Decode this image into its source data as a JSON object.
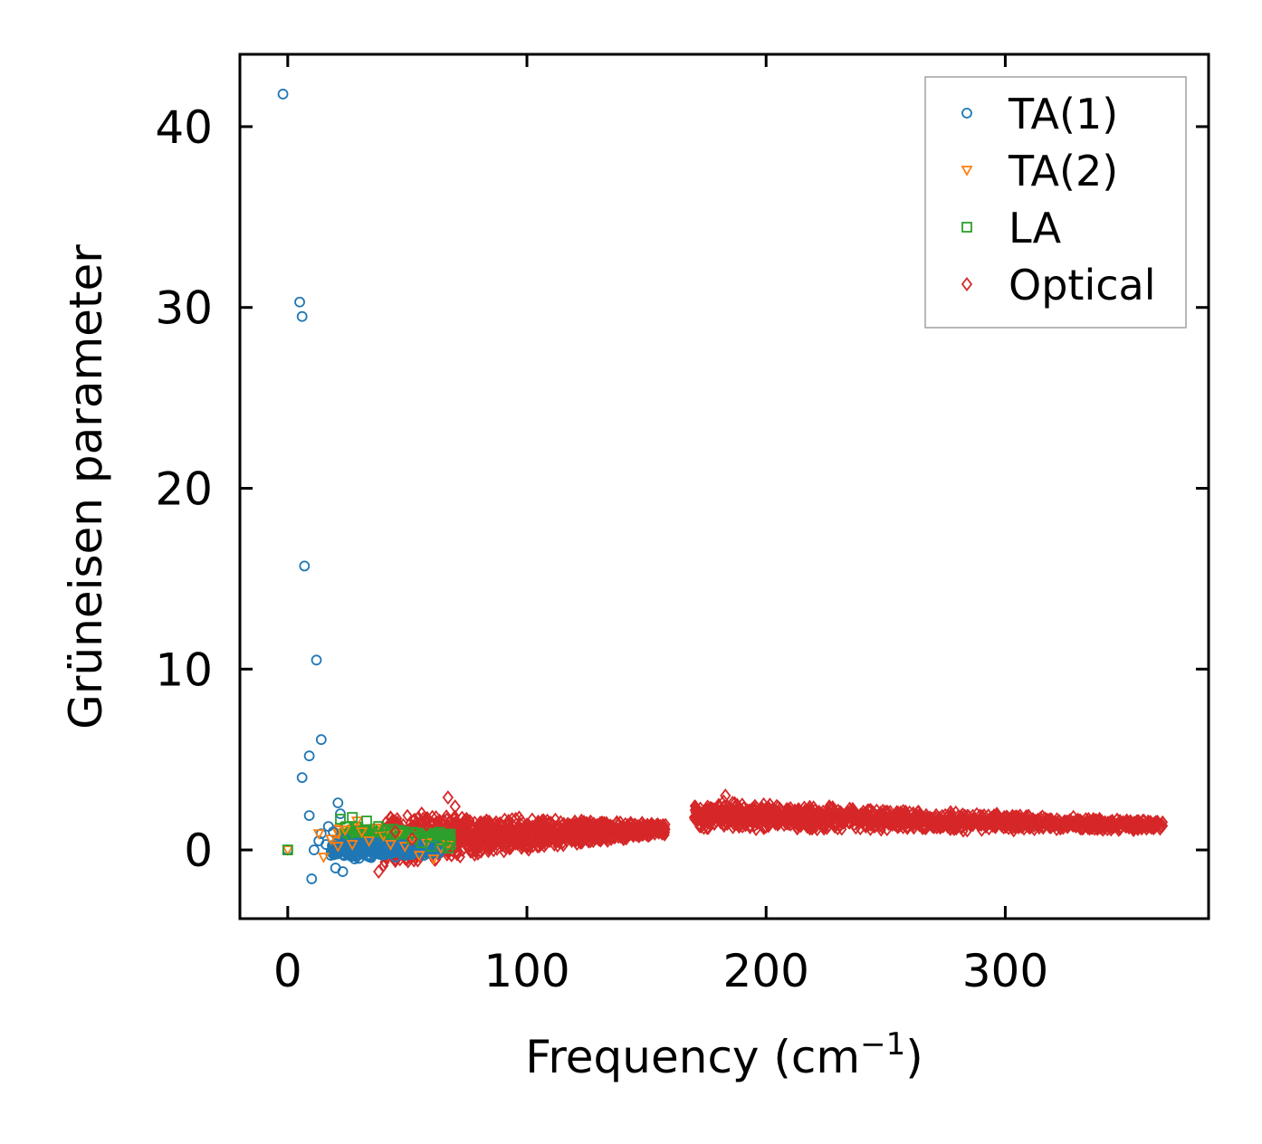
{
  "chart_data": {
    "type": "scatter",
    "title": "",
    "xlabel": "Frequency (cm",
    "xlabel_sup": "−1",
    "xlabel_close": ")",
    "ylabel": "Grüneisen parameter",
    "xlim": [
      -20,
      385
    ],
    "ylim": [
      -3.8,
      44
    ],
    "xticks": [
      0,
      100,
      200,
      300
    ],
    "yticks": [
      0,
      10,
      20,
      30,
      40
    ],
    "legend_position": "top-right",
    "series": [
      {
        "name": "TA(1)",
        "marker": "circle",
        "color": "#1f77b4",
        "points": [
          [
            -2,
            41.8
          ],
          [
            5,
            30.3
          ],
          [
            6,
            29.5
          ],
          [
            7,
            15.7
          ],
          [
            12,
            10.5
          ],
          [
            14,
            6.1
          ],
          [
            9,
            5.2
          ],
          [
            6,
            4.0
          ],
          [
            9,
            1.9
          ],
          [
            10,
            -1.6
          ],
          [
            11,
            0.0
          ],
          [
            13,
            0.5
          ],
          [
            14,
            0.9
          ],
          [
            16,
            0.3
          ],
          [
            17,
            1.3
          ],
          [
            19,
            1.0
          ],
          [
            20,
            -1.0
          ],
          [
            21,
            2.6
          ],
          [
            22,
            2.0
          ],
          [
            23,
            -1.2
          ],
          [
            24,
            0.6
          ],
          [
            26,
            0.2
          ],
          [
            28,
            -0.5
          ],
          [
            30,
            0.1
          ],
          [
            33,
            -0.3
          ],
          [
            36,
            0.4
          ],
          [
            39,
            -0.2
          ],
          [
            42,
            0.3
          ],
          [
            45,
            -0.4
          ],
          [
            48,
            0.2
          ],
          [
            51,
            -0.1
          ],
          [
            54,
            0.4
          ],
          [
            57,
            -0.3
          ],
          [
            60,
            0.0
          ],
          [
            63,
            -0.2
          ],
          [
            0,
            0.0
          ]
        ]
      },
      {
        "name": "TA(2)",
        "marker": "triangle-down",
        "color": "#ff7f0e",
        "points": [
          [
            0,
            0.0
          ],
          [
            13,
            0.9
          ],
          [
            15,
            -0.4
          ],
          [
            18,
            0.6
          ],
          [
            21,
            0.2
          ],
          [
            24,
            1.1
          ],
          [
            27,
            0.3
          ],
          [
            29,
            1.6
          ],
          [
            31,
            1.0
          ],
          [
            34,
            0.5
          ],
          [
            37,
            1.2
          ],
          [
            40,
            0.8
          ],
          [
            43,
            0.3
          ],
          [
            46,
            0.9
          ],
          [
            49,
            0.2
          ],
          [
            52,
            0.6
          ],
          [
            55,
            -0.3
          ],
          [
            58,
            0.4
          ],
          [
            61,
            -0.5
          ],
          [
            64,
            0.1
          ],
          [
            67,
            0.3
          ]
        ]
      },
      {
        "name": "LA",
        "marker": "square",
        "color": "#2ca02c",
        "points": [
          [
            0,
            0.0
          ],
          [
            22,
            1.7
          ],
          [
            27,
            1.8
          ],
          [
            33,
            1.6
          ],
          [
            38,
            1.3
          ],
          [
            43,
            1.0
          ],
          [
            48,
            0.9
          ],
          [
            52,
            0.6
          ],
          [
            56,
            0.4
          ],
          [
            60,
            0.2
          ],
          [
            64,
            0.5
          ],
          [
            67,
            0.1
          ],
          [
            68,
            0.3
          ]
        ]
      },
      {
        "name": "Optical",
        "marker": "diamond",
        "color": "#d62728",
        "points": [
          [
            38,
            -1.2
          ],
          [
            45,
            1.0
          ],
          [
            52,
            0.6
          ],
          [
            58,
            1.4
          ],
          [
            62,
            1.8
          ],
          [
            67,
            2.9
          ],
          [
            70,
            2.4
          ],
          [
            75,
            1.6
          ],
          [
            82,
            1.5
          ],
          [
            90,
            1.3
          ],
          [
            100,
            1.4
          ],
          [
            110,
            1.5
          ],
          [
            120,
            1.4
          ],
          [
            130,
            1.3
          ],
          [
            140,
            1.2
          ],
          [
            150,
            1.2
          ],
          [
            157,
            1.1
          ],
          [
            170,
            1.8
          ],
          [
            178,
            1.9
          ],
          [
            183,
            3.0
          ],
          [
            186,
            2.6
          ],
          [
            190,
            2.5
          ],
          [
            195,
            2.3
          ],
          [
            200,
            2.2
          ],
          [
            210,
            2.1
          ],
          [
            220,
            2.0
          ],
          [
            230,
            1.9
          ],
          [
            240,
            1.8
          ],
          [
            250,
            1.7
          ],
          [
            260,
            1.6
          ],
          [
            270,
            1.5
          ],
          [
            280,
            1.4
          ],
          [
            290,
            1.4
          ],
          [
            300,
            1.4
          ],
          [
            310,
            1.4
          ],
          [
            320,
            1.4
          ],
          [
            330,
            1.4
          ],
          [
            340,
            1.4
          ],
          [
            350,
            1.4
          ],
          [
            360,
            1.3
          ],
          [
            365,
            1.3
          ]
        ]
      }
    ],
    "optical_bands": [
      {
        "x_range": [
          40,
          158
        ],
        "center_start": 0.6,
        "center_end": 1.15,
        "spread_start": 1.6,
        "spread_end": 0.35
      },
      {
        "x_range": [
          170,
          366
        ],
        "center_start": 1.9,
        "center_end": 1.35,
        "spread_start": 0.9,
        "spread_end": 0.3
      }
    ]
  }
}
